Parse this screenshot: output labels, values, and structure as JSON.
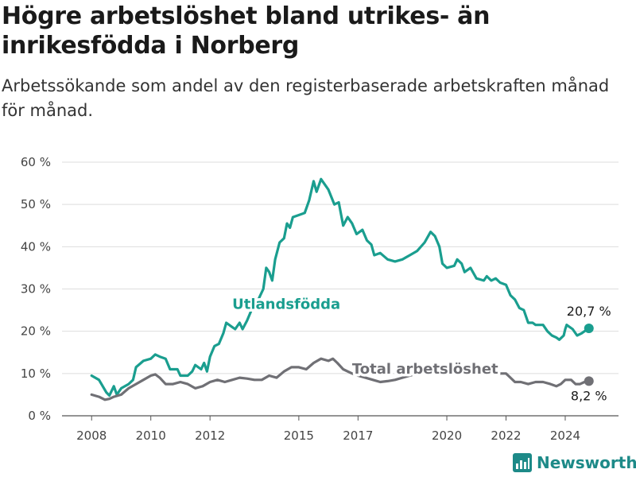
{
  "title": "Högre arbetslöshet bland utrikes- än inrikesfödda i Norberg",
  "subtitle": "Arbetssökande som andel av den registerbaserade arbetskraften månad för månad.",
  "brand": {
    "name": "Newsworthy",
    "icon": "bar-chart-icon"
  },
  "chart_data": {
    "type": "line",
    "ylim": [
      0,
      60
    ],
    "yticks": [
      0,
      10,
      20,
      30,
      40,
      50,
      60
    ],
    "ytick_labels": [
      "0 %",
      "10 %",
      "20 %",
      "30 %",
      "40 %",
      "50 %",
      "60 %"
    ],
    "xticks": [
      2008,
      2010,
      2012,
      2015,
      2017,
      2020,
      2022,
      2024
    ],
    "xlim": [
      2007.0,
      2025.8
    ],
    "grid": true,
    "series": [
      {
        "name": "Utlandsfödda",
        "color": "#1a9e8f",
        "end_label": "20,7 %",
        "points": [
          [
            2008.0,
            9.5
          ],
          [
            2008.25,
            8.5
          ],
          [
            2008.5,
            5.5
          ],
          [
            2008.6,
            4.8
          ],
          [
            2008.75,
            7.0
          ],
          [
            2008.85,
            5.0
          ],
          [
            2009.0,
            6.5
          ],
          [
            2009.25,
            7.5
          ],
          [
            2009.4,
            8.5
          ],
          [
            2009.5,
            11.5
          ],
          [
            2009.75,
            13.0
          ],
          [
            2010.0,
            13.5
          ],
          [
            2010.15,
            14.5
          ],
          [
            2010.3,
            14.0
          ],
          [
            2010.5,
            13.5
          ],
          [
            2010.65,
            11.0
          ],
          [
            2010.9,
            11.0
          ],
          [
            2011.0,
            9.5
          ],
          [
            2011.25,
            9.5
          ],
          [
            2011.4,
            10.5
          ],
          [
            2011.5,
            12.0
          ],
          [
            2011.7,
            11.0
          ],
          [
            2011.8,
            12.5
          ],
          [
            2011.9,
            10.5
          ],
          [
            2012.0,
            14.0
          ],
          [
            2012.15,
            16.5
          ],
          [
            2012.3,
            17.0
          ],
          [
            2012.45,
            19.5
          ],
          [
            2012.55,
            22.0
          ],
          [
            2012.75,
            21.0
          ],
          [
            2012.85,
            20.5
          ],
          [
            2013.0,
            22.0
          ],
          [
            2013.1,
            20.5
          ],
          [
            2013.25,
            22.5
          ],
          [
            2013.4,
            25.0
          ],
          [
            2013.6,
            27.0
          ],
          [
            2013.8,
            30.0
          ],
          [
            2013.9,
            35.0
          ],
          [
            2014.0,
            34.0
          ],
          [
            2014.1,
            32.0
          ],
          [
            2014.2,
            37.0
          ],
          [
            2014.35,
            41.0
          ],
          [
            2014.5,
            42.0
          ],
          [
            2014.6,
            45.5
          ],
          [
            2014.7,
            44.5
          ],
          [
            2014.8,
            47.0
          ],
          [
            2015.0,
            47.5
          ],
          [
            2015.2,
            48.0
          ],
          [
            2015.35,
            51.0
          ],
          [
            2015.5,
            55.5
          ],
          [
            2015.6,
            53.0
          ],
          [
            2015.75,
            56.0
          ],
          [
            2015.85,
            55.0
          ],
          [
            2016.0,
            53.5
          ],
          [
            2016.2,
            50.0
          ],
          [
            2016.35,
            50.5
          ],
          [
            2016.5,
            45.0
          ],
          [
            2016.65,
            47.0
          ],
          [
            2016.8,
            45.5
          ],
          [
            2016.95,
            43.0
          ],
          [
            2017.15,
            44.0
          ],
          [
            2017.3,
            41.5
          ],
          [
            2017.45,
            40.5
          ],
          [
            2017.55,
            38.0
          ],
          [
            2017.75,
            38.5
          ],
          [
            2018.0,
            37.0
          ],
          [
            2018.25,
            36.5
          ],
          [
            2018.5,
            37.0
          ],
          [
            2018.75,
            38.0
          ],
          [
            2019.0,
            39.0
          ],
          [
            2019.25,
            41.0
          ],
          [
            2019.45,
            43.5
          ],
          [
            2019.6,
            42.5
          ],
          [
            2019.75,
            40.0
          ],
          [
            2019.85,
            36.0
          ],
          [
            2020.0,
            35.0
          ],
          [
            2020.25,
            35.5
          ],
          [
            2020.35,
            37.0
          ],
          [
            2020.5,
            36.0
          ],
          [
            2020.6,
            34.0
          ],
          [
            2020.8,
            35.0
          ],
          [
            2021.0,
            32.5
          ],
          [
            2021.25,
            32.0
          ],
          [
            2021.35,
            33.0
          ],
          [
            2021.5,
            32.0
          ],
          [
            2021.65,
            32.5
          ],
          [
            2021.8,
            31.5
          ],
          [
            2022.0,
            31.0
          ],
          [
            2022.15,
            28.5
          ],
          [
            2022.3,
            27.5
          ],
          [
            2022.45,
            25.5
          ],
          [
            2022.6,
            25.0
          ],
          [
            2022.75,
            22.0
          ],
          [
            2022.9,
            22.0
          ],
          [
            2023.0,
            21.5
          ],
          [
            2023.25,
            21.5
          ],
          [
            2023.4,
            20.0
          ],
          [
            2023.55,
            19.0
          ],
          [
            2023.7,
            18.5
          ],
          [
            2023.8,
            18.0
          ],
          [
            2023.95,
            19.0
          ],
          [
            2024.0,
            20.5
          ],
          [
            2024.05,
            21.5
          ],
          [
            2024.25,
            20.5
          ],
          [
            2024.4,
            19.0
          ],
          [
            2024.55,
            19.5
          ],
          [
            2024.65,
            20.0
          ],
          [
            2024.8,
            20.7
          ]
        ]
      },
      {
        "name": "Total arbetslöshet",
        "color": "#707075",
        "end_label": "8,2 %",
        "points": [
          [
            2008.0,
            5.0
          ],
          [
            2008.25,
            4.5
          ],
          [
            2008.45,
            3.8
          ],
          [
            2008.6,
            4.0
          ],
          [
            2008.75,
            4.5
          ],
          [
            2009.0,
            5.0
          ],
          [
            2009.25,
            6.5
          ],
          [
            2009.5,
            7.5
          ],
          [
            2009.75,
            8.5
          ],
          [
            2010.0,
            9.5
          ],
          [
            2010.15,
            9.8
          ],
          [
            2010.3,
            9.0
          ],
          [
            2010.5,
            7.5
          ],
          [
            2010.75,
            7.5
          ],
          [
            2011.0,
            8.0
          ],
          [
            2011.25,
            7.5
          ],
          [
            2011.5,
            6.5
          ],
          [
            2011.75,
            7.0
          ],
          [
            2012.0,
            8.0
          ],
          [
            2012.25,
            8.5
          ],
          [
            2012.5,
            8.0
          ],
          [
            2012.75,
            8.5
          ],
          [
            2013.0,
            9.0
          ],
          [
            2013.25,
            8.8
          ],
          [
            2013.5,
            8.5
          ],
          [
            2013.75,
            8.5
          ],
          [
            2014.0,
            9.5
          ],
          [
            2014.25,
            9.0
          ],
          [
            2014.5,
            10.5
          ],
          [
            2014.75,
            11.5
          ],
          [
            2015.0,
            11.5
          ],
          [
            2015.25,
            11.0
          ],
          [
            2015.5,
            12.5
          ],
          [
            2015.75,
            13.5
          ],
          [
            2016.0,
            13.0
          ],
          [
            2016.15,
            13.5
          ],
          [
            2016.3,
            12.5
          ],
          [
            2016.5,
            11.0
          ],
          [
            2016.65,
            10.5
          ],
          [
            2016.8,
            10.0
          ],
          [
            2017.0,
            9.5
          ],
          [
            2017.25,
            9.0
          ],
          [
            2017.5,
            8.5
          ],
          [
            2017.75,
            8.0
          ],
          [
            2018.0,
            8.2
          ],
          [
            2018.25,
            8.5
          ],
          [
            2018.5,
            9.0
          ],
          [
            2018.75,
            9.5
          ],
          [
            2019.0,
            10.0
          ],
          [
            2019.25,
            10.5
          ],
          [
            2019.5,
            10.5
          ],
          [
            2019.75,
            10.2
          ],
          [
            2020.0,
            10.0
          ],
          [
            2020.25,
            10.5
          ],
          [
            2020.5,
            10.0
          ],
          [
            2020.75,
            10.2
          ],
          [
            2021.0,
            10.0
          ],
          [
            2021.25,
            10.0
          ],
          [
            2021.5,
            10.5
          ],
          [
            2021.75,
            10.0
          ],
          [
            2022.0,
            10.0
          ],
          [
            2022.15,
            9.0
          ],
          [
            2022.3,
            8.0
          ],
          [
            2022.5,
            8.0
          ],
          [
            2022.75,
            7.5
          ],
          [
            2023.0,
            8.0
          ],
          [
            2023.25,
            8.0
          ],
          [
            2023.5,
            7.5
          ],
          [
            2023.7,
            7.0
          ],
          [
            2023.85,
            7.5
          ],
          [
            2024.0,
            8.5
          ],
          [
            2024.2,
            8.5
          ],
          [
            2024.35,
            7.5
          ],
          [
            2024.5,
            7.5
          ],
          [
            2024.65,
            8.0
          ],
          [
            2024.8,
            8.2
          ]
        ]
      }
    ],
    "annotations": [
      {
        "text": "Utlandsfödda",
        "series": 0,
        "at_x": 2012.75,
        "at_y": 25.3,
        "color": "#1a9e8f"
      },
      {
        "text": "Total arbetslöshet",
        "series": 1,
        "at_x": 2016.8,
        "at_y": 10.0,
        "color": "#707075"
      }
    ]
  }
}
